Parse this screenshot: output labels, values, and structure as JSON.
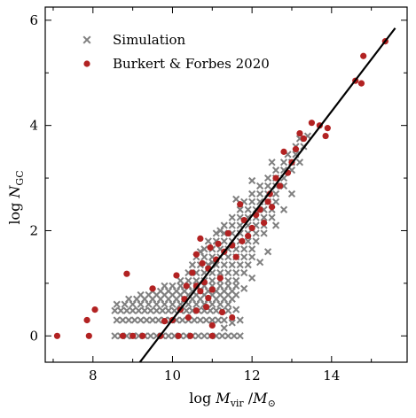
{
  "chart_data": {
    "type": "scatter",
    "xlabel": "log M_vir / M_⊙",
    "ylabel": "log N_GC",
    "xlim": [
      6.8,
      15.9
    ],
    "ylim": [
      -0.5,
      6.25
    ],
    "xticks": [
      8,
      10,
      12,
      14
    ],
    "yticks": [
      0,
      2,
      4,
      6
    ],
    "legend_position": "top-left",
    "grid": false,
    "colors": {
      "simulation": "#808080",
      "burkert": "#b22222",
      "fit_line": "#000000"
    },
    "fit_line": {
      "x": [
        9.18,
        15.6
      ],
      "y": [
        -0.5,
        5.85
      ]
    },
    "series": [
      {
        "name": "Simulation",
        "marker": "x",
        "points": [
          [
            8.55,
            0.0
          ],
          [
            8.7,
            0.0
          ],
          [
            8.85,
            0.0
          ],
          [
            9.0,
            0.0
          ],
          [
            9.15,
            0.0
          ],
          [
            9.3,
            0.0
          ],
          [
            9.45,
            0.0
          ],
          [
            9.6,
            0.0
          ],
          [
            9.75,
            0.0
          ],
          [
            9.9,
            0.0
          ],
          [
            10.05,
            0.0
          ],
          [
            10.2,
            0.0
          ],
          [
            10.35,
            0.0
          ],
          [
            10.5,
            0.0
          ],
          [
            10.65,
            0.0
          ],
          [
            10.8,
            0.0
          ],
          [
            10.95,
            0.0
          ],
          [
            11.1,
            0.0
          ],
          [
            11.25,
            0.0
          ],
          [
            11.4,
            0.0
          ],
          [
            11.55,
            0.0
          ],
          [
            11.7,
            0.0
          ],
          [
            8.6,
            0.3
          ],
          [
            8.75,
            0.3
          ],
          [
            8.9,
            0.3
          ],
          [
            9.05,
            0.3
          ],
          [
            9.2,
            0.3
          ],
          [
            9.35,
            0.3
          ],
          [
            9.5,
            0.3
          ],
          [
            9.65,
            0.3
          ],
          [
            9.8,
            0.3
          ],
          [
            9.95,
            0.3
          ],
          [
            10.1,
            0.3
          ],
          [
            10.25,
            0.3
          ],
          [
            10.4,
            0.3
          ],
          [
            10.55,
            0.3
          ],
          [
            10.7,
            0.3
          ],
          [
            10.85,
            0.3
          ],
          [
            11.0,
            0.3
          ],
          [
            11.15,
            0.3
          ],
          [
            11.3,
            0.3
          ],
          [
            8.55,
            0.48
          ],
          [
            8.7,
            0.48
          ],
          [
            8.85,
            0.48
          ],
          [
            9.0,
            0.48
          ],
          [
            9.15,
            0.48
          ],
          [
            9.3,
            0.48
          ],
          [
            9.45,
            0.48
          ],
          [
            9.6,
            0.48
          ],
          [
            9.75,
            0.48
          ],
          [
            9.9,
            0.48
          ],
          [
            10.05,
            0.48
          ],
          [
            10.2,
            0.48
          ],
          [
            10.35,
            0.48
          ],
          [
            10.5,
            0.48
          ],
          [
            10.65,
            0.48
          ],
          [
            10.8,
            0.48
          ],
          [
            10.95,
            0.48
          ],
          [
            11.1,
            0.48
          ],
          [
            11.25,
            0.48
          ],
          [
            11.4,
            0.48
          ],
          [
            8.6,
            0.6
          ],
          [
            8.8,
            0.6
          ],
          [
            9.0,
            0.6
          ],
          [
            9.2,
            0.6
          ],
          [
            9.4,
            0.6
          ],
          [
            9.6,
            0.6
          ],
          [
            9.8,
            0.6
          ],
          [
            10.0,
            0.6
          ],
          [
            10.2,
            0.6
          ],
          [
            10.4,
            0.6
          ],
          [
            10.6,
            0.6
          ],
          [
            10.8,
            0.6
          ],
          [
            11.0,
            0.6
          ],
          [
            11.2,
            0.6
          ],
          [
            11.4,
            0.6
          ],
          [
            8.9,
            0.7
          ],
          [
            9.1,
            0.7
          ],
          [
            9.3,
            0.7
          ],
          [
            9.5,
            0.7
          ],
          [
            9.7,
            0.7
          ],
          [
            9.9,
            0.7
          ],
          [
            10.1,
            0.7
          ],
          [
            10.3,
            0.7
          ],
          [
            10.5,
            0.7
          ],
          [
            10.7,
            0.7
          ],
          [
            10.9,
            0.7
          ],
          [
            11.1,
            0.7
          ],
          [
            11.3,
            0.7
          ],
          [
            11.5,
            0.7
          ],
          [
            9.2,
            0.78
          ],
          [
            9.4,
            0.78
          ],
          [
            9.6,
            0.78
          ],
          [
            9.8,
            0.78
          ],
          [
            10.0,
            0.78
          ],
          [
            10.2,
            0.78
          ],
          [
            10.4,
            0.78
          ],
          [
            10.6,
            0.78
          ],
          [
            10.8,
            0.78
          ],
          [
            11.0,
            0.78
          ],
          [
            11.2,
            0.78
          ],
          [
            11.4,
            0.78
          ],
          [
            11.6,
            0.78
          ],
          [
            9.5,
            0.85
          ],
          [
            9.7,
            0.85
          ],
          [
            9.9,
            0.85
          ],
          [
            10.1,
            0.85
          ],
          [
            10.3,
            0.85
          ],
          [
            10.5,
            0.85
          ],
          [
            10.7,
            0.85
          ],
          [
            10.9,
            0.85
          ],
          [
            11.1,
            0.85
          ],
          [
            11.3,
            0.85
          ],
          [
            11.5,
            0.85
          ],
          [
            9.8,
            0.95
          ],
          [
            10.0,
            0.95
          ],
          [
            10.2,
            0.95
          ],
          [
            10.4,
            0.95
          ],
          [
            10.6,
            0.95
          ],
          [
            10.8,
            0.95
          ],
          [
            11.0,
            0.95
          ],
          [
            11.2,
            0.95
          ],
          [
            11.4,
            0.95
          ],
          [
            11.6,
            0.95
          ],
          [
            10.2,
            1.05
          ],
          [
            10.4,
            1.05
          ],
          [
            10.6,
            1.05
          ],
          [
            10.8,
            1.05
          ],
          [
            11.0,
            1.05
          ],
          [
            11.2,
            1.05
          ],
          [
            11.4,
            1.05
          ],
          [
            11.6,
            1.05
          ],
          [
            10.4,
            1.2
          ],
          [
            10.6,
            1.2
          ],
          [
            10.8,
            1.2
          ],
          [
            11.0,
            1.2
          ],
          [
            11.2,
            1.2
          ],
          [
            11.4,
            1.2
          ],
          [
            11.6,
            1.2
          ],
          [
            11.8,
            1.2
          ],
          [
            10.5,
            1.35
          ],
          [
            10.7,
            1.35
          ],
          [
            10.9,
            1.35
          ],
          [
            11.1,
            1.35
          ],
          [
            11.3,
            1.35
          ],
          [
            11.5,
            1.35
          ],
          [
            11.7,
            1.35
          ],
          [
            11.9,
            1.35
          ],
          [
            10.6,
            1.5
          ],
          [
            10.8,
            1.5
          ],
          [
            11.0,
            1.5
          ],
          [
            11.2,
            1.5
          ],
          [
            11.4,
            1.5
          ],
          [
            11.6,
            1.5
          ],
          [
            11.8,
            1.5
          ],
          [
            12.0,
            1.5
          ],
          [
            10.8,
            1.65
          ],
          [
            11.0,
            1.65
          ],
          [
            11.2,
            1.65
          ],
          [
            11.4,
            1.65
          ],
          [
            11.6,
            1.65
          ],
          [
            11.8,
            1.65
          ],
          [
            12.0,
            1.65
          ],
          [
            10.9,
            1.8
          ],
          [
            11.1,
            1.8
          ],
          [
            11.3,
            1.8
          ],
          [
            11.5,
            1.8
          ],
          [
            11.7,
            1.8
          ],
          [
            11.9,
            1.8
          ],
          [
            12.1,
            1.8
          ],
          [
            11.1,
            1.95
          ],
          [
            11.3,
            1.95
          ],
          [
            11.5,
            1.95
          ],
          [
            11.7,
            1.95
          ],
          [
            11.9,
            1.95
          ],
          [
            12.1,
            1.95
          ],
          [
            12.3,
            1.95
          ],
          [
            11.3,
            2.1
          ],
          [
            11.5,
            2.1
          ],
          [
            11.7,
            2.1
          ],
          [
            11.9,
            2.1
          ],
          [
            12.1,
            2.1
          ],
          [
            12.3,
            2.1
          ],
          [
            11.5,
            2.25
          ],
          [
            11.7,
            2.25
          ],
          [
            11.9,
            2.25
          ],
          [
            12.1,
            2.25
          ],
          [
            12.3,
            2.25
          ],
          [
            12.5,
            2.25
          ],
          [
            11.7,
            2.4
          ],
          [
            11.9,
            2.4
          ],
          [
            12.1,
            2.4
          ],
          [
            12.3,
            2.4
          ],
          [
            12.5,
            2.4
          ],
          [
            11.8,
            2.55
          ],
          [
            12.0,
            2.55
          ],
          [
            12.2,
            2.55
          ],
          [
            12.4,
            2.55
          ],
          [
            12.6,
            2.55
          ],
          [
            12.0,
            2.7
          ],
          [
            12.2,
            2.7
          ],
          [
            12.4,
            2.7
          ],
          [
            12.6,
            2.7
          ],
          [
            12.2,
            2.85
          ],
          [
            12.4,
            2.85
          ],
          [
            12.6,
            2.85
          ],
          [
            12.8,
            2.85
          ],
          [
            12.4,
            3.0
          ],
          [
            12.6,
            3.0
          ],
          [
            12.8,
            3.0
          ],
          [
            12.6,
            3.15
          ],
          [
            12.8,
            3.15
          ],
          [
            13.0,
            3.15
          ],
          [
            12.8,
            3.3
          ],
          [
            13.0,
            3.3
          ],
          [
            13.2,
            3.3
          ],
          [
            12.9,
            3.45
          ],
          [
            13.1,
            3.45
          ],
          [
            13.1,
            3.6
          ],
          [
            13.3,
            3.6
          ],
          [
            13.2,
            3.75
          ],
          [
            13.4,
            3.8
          ],
          [
            11.6,
            0.5
          ],
          [
            11.8,
            0.9
          ],
          [
            12.0,
            1.1
          ],
          [
            12.2,
            1.4
          ],
          [
            11.5,
            0.25
          ],
          [
            11.3,
            0.15
          ],
          [
            11.7,
            0.3
          ],
          [
            12.4,
            1.6
          ],
          [
            12.6,
            2.1
          ],
          [
            12.8,
            2.4
          ],
          [
            13.0,
            2.7
          ],
          [
            11.0,
            1.4
          ],
          [
            10.7,
            1.6
          ],
          [
            11.2,
            2.0
          ],
          [
            11.6,
            2.6
          ],
          [
            12.0,
            2.95
          ],
          [
            12.5,
            3.3
          ]
        ]
      },
      {
        "name": "Burkert & Forbes 2020",
        "marker": "o",
        "points": [
          [
            7.1,
            0.0
          ],
          [
            7.85,
            0.3
          ],
          [
            7.9,
            0.0
          ],
          [
            8.05,
            0.5
          ],
          [
            8.75,
            0.0
          ],
          [
            9.0,
            0.0
          ],
          [
            9.25,
            0.0
          ],
          [
            9.7,
            0.0
          ],
          [
            10.15,
            0.0
          ],
          [
            10.45,
            0.0
          ],
          [
            11.0,
            0.0
          ],
          [
            9.8,
            0.28
          ],
          [
            10.0,
            0.3
          ],
          [
            10.4,
            0.35
          ],
          [
            10.6,
            0.48
          ],
          [
            10.2,
            0.5
          ],
          [
            10.85,
            0.55
          ],
          [
            10.3,
            0.7
          ],
          [
            10.9,
            0.72
          ],
          [
            10.7,
            0.85
          ],
          [
            9.5,
            0.9
          ],
          [
            8.85,
            1.18
          ],
          [
            10.6,
            0.95
          ],
          [
            10.8,
            1.02
          ],
          [
            11.0,
            0.88
          ],
          [
            11.2,
            1.1
          ],
          [
            10.5,
            1.2
          ],
          [
            10.9,
            1.28
          ],
          [
            10.75,
            1.38
          ],
          [
            11.1,
            1.45
          ],
          [
            10.6,
            1.55
          ],
          [
            11.3,
            1.6
          ],
          [
            10.95,
            1.68
          ],
          [
            11.15,
            1.75
          ],
          [
            11.5,
            1.72
          ],
          [
            10.7,
            1.85
          ],
          [
            11.4,
            1.95
          ],
          [
            11.6,
            1.5
          ],
          [
            11.75,
            1.8
          ],
          [
            11.9,
            1.9
          ],
          [
            12.0,
            2.05
          ],
          [
            11.8,
            2.2
          ],
          [
            12.1,
            2.3
          ],
          [
            12.3,
            2.15
          ],
          [
            12.2,
            2.4
          ],
          [
            11.7,
            2.5
          ],
          [
            12.4,
            2.55
          ],
          [
            12.5,
            2.45
          ],
          [
            12.45,
            2.7
          ],
          [
            12.7,
            2.85
          ],
          [
            12.6,
            3.0
          ],
          [
            12.9,
            3.1
          ],
          [
            13.0,
            3.3
          ],
          [
            12.8,
            3.5
          ],
          [
            13.1,
            3.55
          ],
          [
            13.3,
            3.75
          ],
          [
            13.2,
            3.85
          ],
          [
            13.5,
            4.05
          ],
          [
            13.7,
            4.0
          ],
          [
            13.9,
            3.95
          ],
          [
            13.85,
            3.8
          ],
          [
            14.6,
            4.85
          ],
          [
            14.75,
            4.8
          ],
          [
            14.8,
            5.32
          ],
          [
            15.35,
            5.6
          ],
          [
            11.0,
            0.2
          ],
          [
            11.25,
            0.45
          ],
          [
            11.5,
            0.35
          ],
          [
            10.35,
            0.95
          ],
          [
            10.1,
            1.15
          ]
        ]
      }
    ]
  }
}
